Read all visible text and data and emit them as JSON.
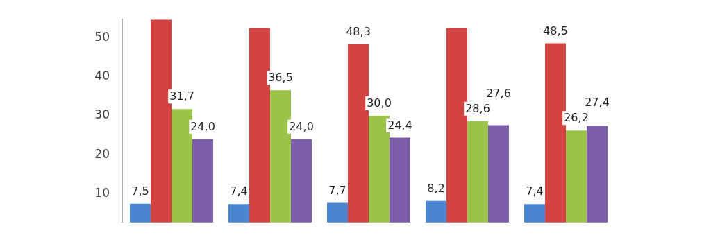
{
  "chart_data": {
    "type": "bar",
    "categories": [
      null,
      null,
      null,
      null,
      null
    ],
    "series": [
      {
        "color": "#4a86d0",
        "values": [
          7.5,
          7.4,
          7.7,
          8.2,
          7.4
        ],
        "value_labels": [
          "7,5",
          "7,4",
          "7,7",
          "8,2",
          "7,4"
        ]
      },
      {
        "color": "#d24341",
        "values": [
          54.6,
          52.4,
          48.3,
          52.4,
          48.5
        ],
        "value_labels": [
          null,
          null,
          "48,3",
          null,
          "48,5"
        ]
      },
      {
        "color": "#9bc34a",
        "values": [
          31.7,
          36.5,
          30.0,
          28.6,
          26.2
        ],
        "value_labels": [
          "31,7",
          "36,5",
          "30,0",
          "28,6",
          "26,2"
        ]
      },
      {
        "color": "#7d5ea8",
        "values": [
          24.0,
          24.0,
          24.4,
          27.6,
          27.4
        ],
        "value_labels": [
          "24,0",
          "24,0",
          "24,4",
          "27,6",
          "27,4"
        ]
      }
    ],
    "ylim": [
      2.7,
      54.6
    ],
    "yticks": [
      10,
      20,
      30,
      40,
      50
    ],
    "grid": false,
    "legend": false
  }
}
